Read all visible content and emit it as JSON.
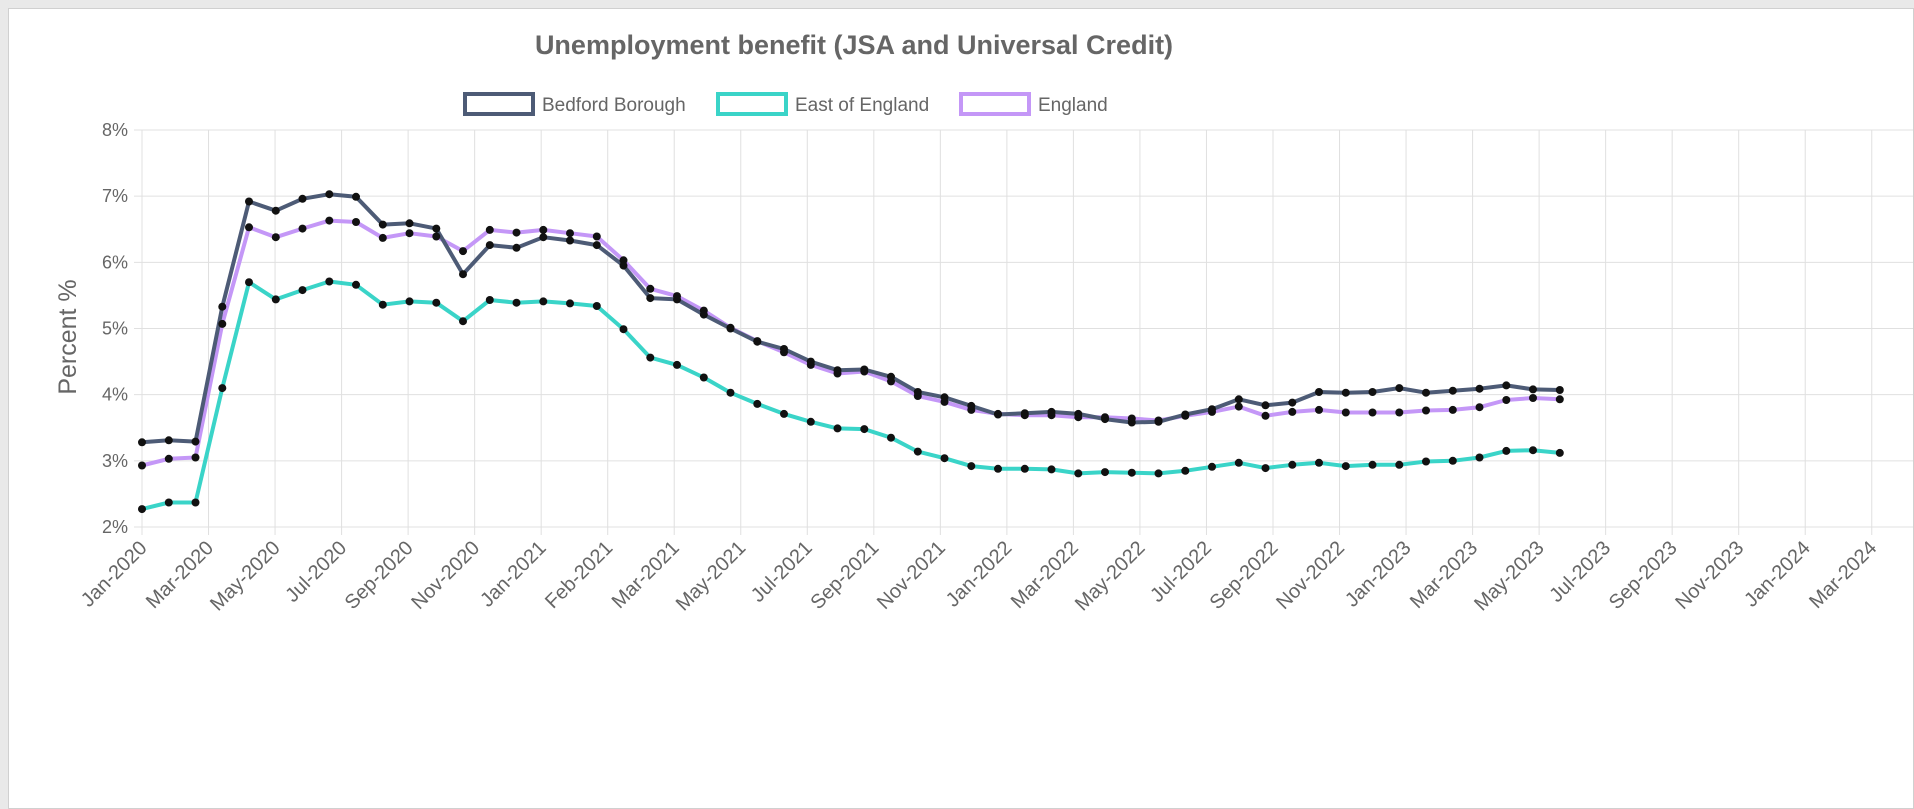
{
  "chart_data": {
    "type": "line",
    "title": "Unemployment benefit (JSA and Universal Credit)",
    "ylabel": "Percent %",
    "xlabel": "",
    "ylim": [
      2,
      8
    ],
    "y_ticks": [
      "2%",
      "3%",
      "4%",
      "5%",
      "6%",
      "7%",
      "8%"
    ],
    "grid": true,
    "legend_position": "top",
    "x_tick_labels": [
      "Jan-2020",
      "Mar-2020",
      "May-2020",
      "Jul-2020",
      "Sep-2020",
      "Nov-2020",
      "Jan-2021",
      "Feb-2021",
      "Mar-2021",
      "May-2021",
      "Jul-2021",
      "Sep-2021",
      "Nov-2021",
      "Jan-2022",
      "Mar-2022",
      "May-2022",
      "Jul-2022",
      "Sep-2022",
      "Nov-2022",
      "Jan-2023",
      "Mar-2023",
      "May-2023",
      "Jul-2023",
      "Sep-2023",
      "Nov-2023",
      "Jan-2024",
      "Mar-2024"
    ],
    "series": [
      {
        "name": "Bedford Borough",
        "color": "#4d5b76",
        "values": [
          3.28,
          3.31,
          3.29,
          5.33,
          6.92,
          6.78,
          6.96,
          7.03,
          6.99,
          6.57,
          6.59,
          6.51,
          5.82,
          6.26,
          6.22,
          6.38,
          6.33,
          6.26,
          5.95,
          5.46,
          5.44,
          5.21,
          5.0,
          4.8,
          4.69,
          4.5,
          4.37,
          4.38,
          4.27,
          4.04,
          3.96,
          3.83,
          3.7,
          3.72,
          3.74,
          3.71,
          3.63,
          3.58,
          3.59,
          3.7,
          3.78,
          3.93,
          3.84,
          3.88,
          4.04,
          4.03,
          4.04,
          4.1,
          4.03,
          4.06,
          4.09,
          4.14,
          4.08,
          4.07
        ]
      },
      {
        "name": "East of England",
        "color": "#3ad4c8",
        "values": [
          2.27,
          2.37,
          2.37,
          4.1,
          5.7,
          5.44,
          5.58,
          5.71,
          5.66,
          5.36,
          5.41,
          5.39,
          5.11,
          5.43,
          5.39,
          5.41,
          5.38,
          5.34,
          4.99,
          4.56,
          4.45,
          4.26,
          4.03,
          3.86,
          3.71,
          3.59,
          3.49,
          3.48,
          3.35,
          3.14,
          3.04,
          2.92,
          2.88,
          2.88,
          2.87,
          2.81,
          2.83,
          2.82,
          2.81,
          2.85,
          2.91,
          2.97,
          2.89,
          2.94,
          2.97,
          2.92,
          2.94,
          2.94,
          2.99,
          3.0,
          3.05,
          3.15,
          3.16,
          3.12
        ]
      },
      {
        "name": "England",
        "color": "#c497f7",
        "values": [
          2.93,
          3.03,
          3.05,
          5.07,
          6.53,
          6.38,
          6.51,
          6.63,
          6.61,
          6.37,
          6.44,
          6.39,
          6.17,
          6.49,
          6.45,
          6.49,
          6.44,
          6.39,
          6.03,
          5.6,
          5.49,
          5.27,
          5.01,
          4.81,
          4.64,
          4.45,
          4.32,
          4.35,
          4.2,
          3.98,
          3.89,
          3.77,
          3.71,
          3.69,
          3.69,
          3.66,
          3.66,
          3.64,
          3.61,
          3.68,
          3.74,
          3.82,
          3.68,
          3.74,
          3.77,
          3.73,
          3.73,
          3.73,
          3.76,
          3.77,
          3.81,
          3.92,
          3.95,
          3.93
        ]
      }
    ]
  }
}
